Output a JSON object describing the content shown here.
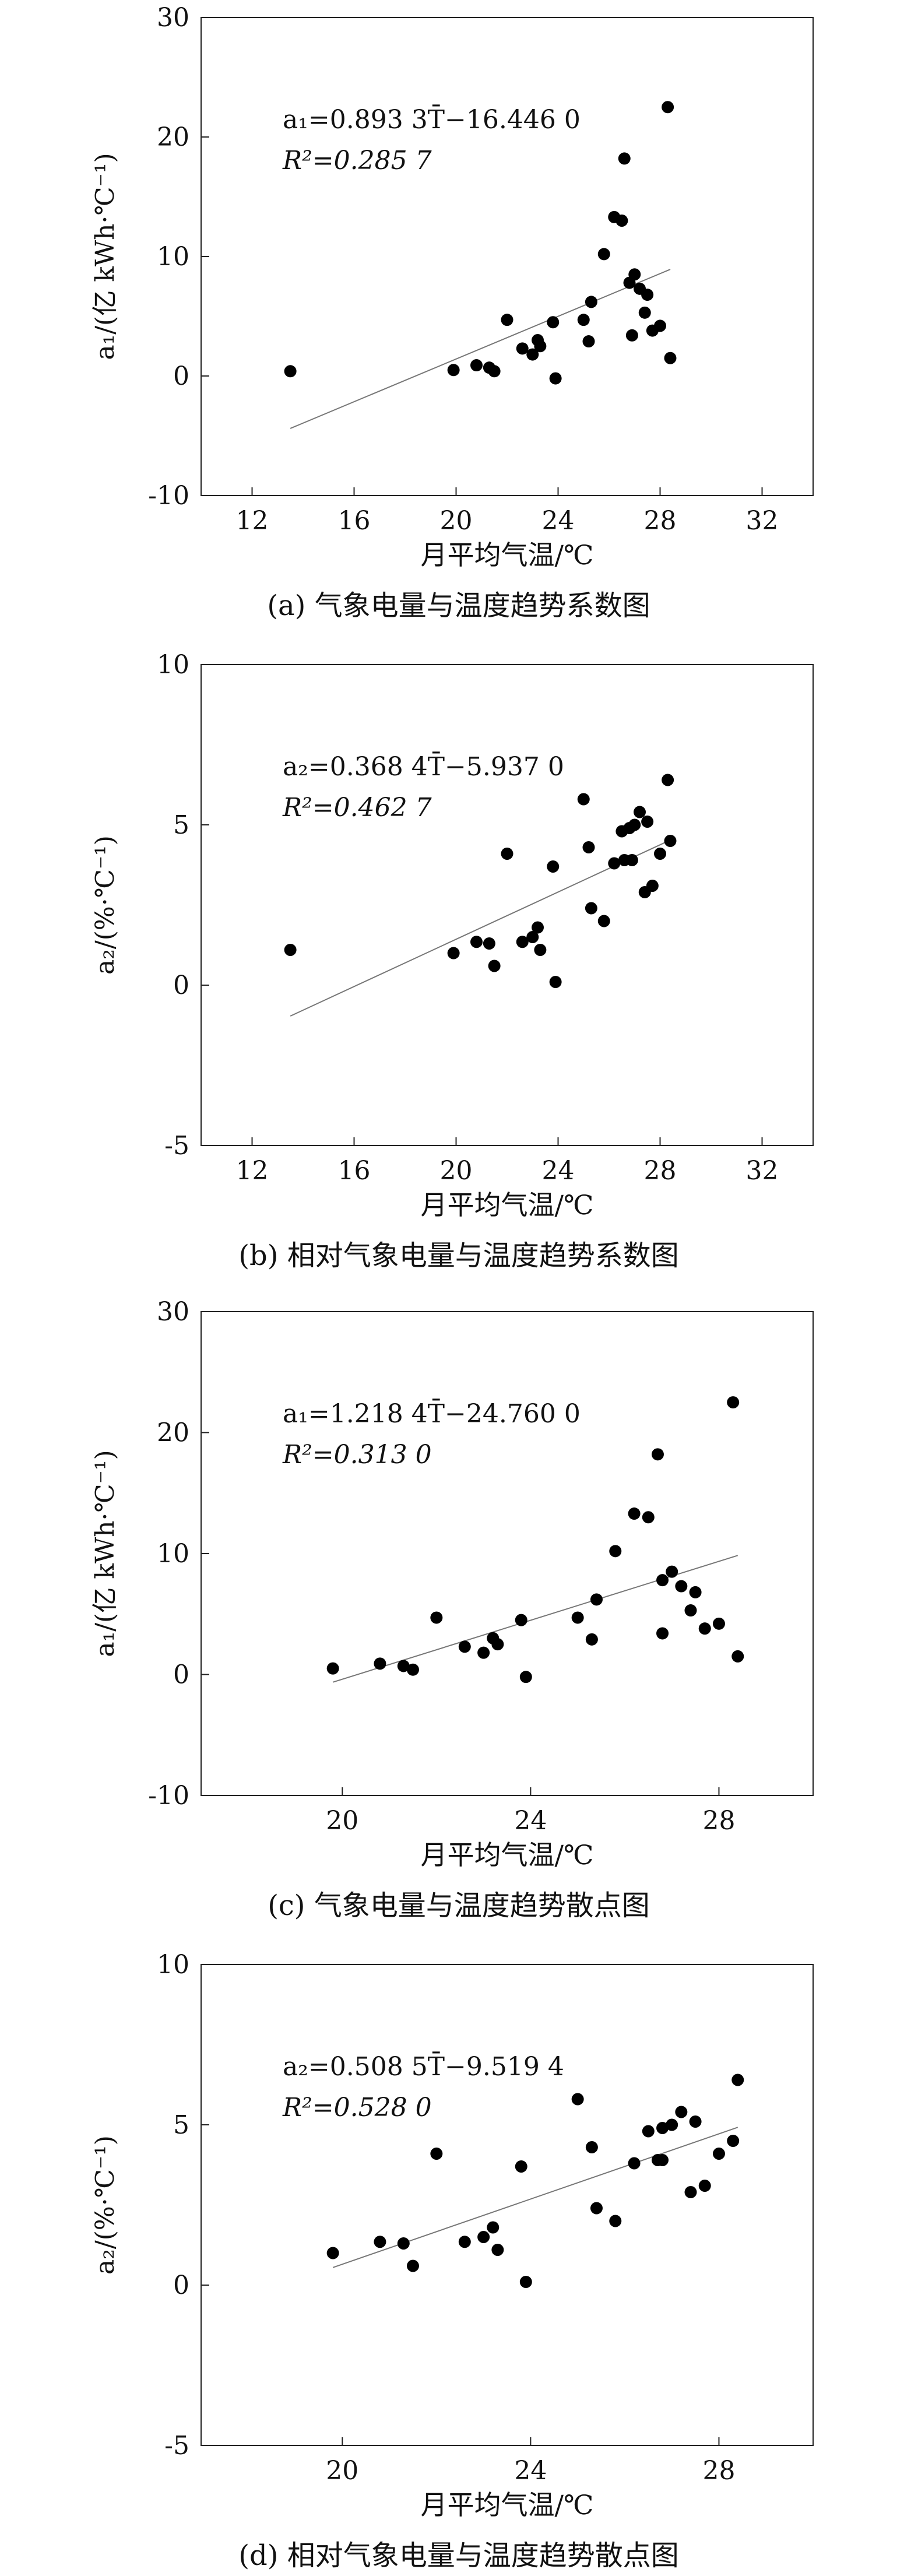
{
  "chart_data": [
    {
      "type": "scatter",
      "panel": "a",
      "caption": "(a) 气象电量与温度趋势系数图",
      "xlabel": "月平均气温/℃",
      "ylabel": "a₁/(亿 kWh·℃⁻¹)",
      "xlim": [
        10,
        34
      ],
      "ylim": [
        -10,
        30
      ],
      "xticks": [
        12,
        16,
        20,
        24,
        28,
        32
      ],
      "yticks": [
        -10,
        0,
        10,
        20,
        30
      ],
      "equation": "a₁=0.893 3T̄−16.446 0",
      "r2": "R²=0.285 7",
      "fit": {
        "slope": 0.8933,
        "intercept": -16.446,
        "x_range": [
          13.5,
          28.4
        ]
      },
      "points": [
        {
          "x": 13.5,
          "y": 0.4
        },
        {
          "x": 19.9,
          "y": 0.5
        },
        {
          "x": 20.8,
          "y": 0.9
        },
        {
          "x": 21.3,
          "y": 0.7
        },
        {
          "x": 21.5,
          "y": 0.4
        },
        {
          "x": 22.0,
          "y": 4.7
        },
        {
          "x": 22.6,
          "y": 2.3
        },
        {
          "x": 23.0,
          "y": 1.8
        },
        {
          "x": 23.2,
          "y": 3.0
        },
        {
          "x": 23.3,
          "y": 2.5
        },
        {
          "x": 23.8,
          "y": 4.5
        },
        {
          "x": 23.9,
          "y": -0.2
        },
        {
          "x": 25.0,
          "y": 4.7
        },
        {
          "x": 25.2,
          "y": 2.9
        },
        {
          "x": 25.3,
          "y": 6.2
        },
        {
          "x": 25.8,
          "y": 10.2
        },
        {
          "x": 26.2,
          "y": 13.3
        },
        {
          "x": 26.5,
          "y": 13.0
        },
        {
          "x": 26.6,
          "y": 18.2
        },
        {
          "x": 26.8,
          "y": 7.8
        },
        {
          "x": 26.9,
          "y": 3.4
        },
        {
          "x": 27.0,
          "y": 8.5
        },
        {
          "x": 27.2,
          "y": 7.3
        },
        {
          "x": 27.4,
          "y": 5.3
        },
        {
          "x": 27.5,
          "y": 6.8
        },
        {
          "x": 27.7,
          "y": 3.8
        },
        {
          "x": 28.0,
          "y": 4.2
        },
        {
          "x": 28.3,
          "y": 22.5
        },
        {
          "x": 28.4,
          "y": 1.5
        }
      ]
    },
    {
      "type": "scatter",
      "panel": "b",
      "caption": "(b) 相对气象电量与温度趋势系数图",
      "xlabel": "月平均气温/℃",
      "ylabel": "a₂/(%·℃⁻¹)",
      "xlim": [
        10,
        34
      ],
      "ylim": [
        -5,
        10
      ],
      "xticks": [
        12,
        16,
        20,
        24,
        28,
        32
      ],
      "yticks": [
        -5,
        0,
        5,
        10
      ],
      "equation": "a₂=0.368 4T̄−5.937 0",
      "r2": "R²=0.462 7",
      "fit": {
        "slope": 0.3684,
        "intercept": -5.937,
        "x_range": [
          13.5,
          28.4
        ]
      },
      "points": [
        {
          "x": 13.5,
          "y": 1.1
        },
        {
          "x": 19.9,
          "y": 1.0
        },
        {
          "x": 20.8,
          "y": 1.35
        },
        {
          "x": 21.3,
          "y": 1.3
        },
        {
          "x": 21.5,
          "y": 0.6
        },
        {
          "x": 22.0,
          "y": 4.1
        },
        {
          "x": 22.6,
          "y": 1.35
        },
        {
          "x": 23.0,
          "y": 1.5
        },
        {
          "x": 23.2,
          "y": 1.8
        },
        {
          "x": 23.3,
          "y": 1.1
        },
        {
          "x": 23.8,
          "y": 3.7
        },
        {
          "x": 23.9,
          "y": 0.1
        },
        {
          "x": 25.0,
          "y": 5.8
        },
        {
          "x": 25.2,
          "y": 4.3
        },
        {
          "x": 25.3,
          "y": 2.4
        },
        {
          "x": 25.8,
          "y": 2.0
        },
        {
          "x": 26.2,
          "y": 3.8
        },
        {
          "x": 26.5,
          "y": 4.8
        },
        {
          "x": 26.6,
          "y": 3.9
        },
        {
          "x": 26.8,
          "y": 4.9
        },
        {
          "x": 26.9,
          "y": 3.9
        },
        {
          "x": 27.0,
          "y": 5.0
        },
        {
          "x": 27.2,
          "y": 5.4
        },
        {
          "x": 27.4,
          "y": 2.9
        },
        {
          "x": 27.5,
          "y": 5.1
        },
        {
          "x": 27.7,
          "y": 3.1
        },
        {
          "x": 28.0,
          "y": 4.1
        },
        {
          "x": 28.3,
          "y": 6.4
        },
        {
          "x": 28.4,
          "y": 4.5
        }
      ]
    },
    {
      "type": "scatter",
      "panel": "c",
      "caption": "(c) 气象电量与温度趋势散点图",
      "xlabel": "月平均气温/℃",
      "ylabel": "a₁/(亿 kWh·℃⁻¹)",
      "xlim": [
        17,
        30
      ],
      "ylim": [
        -10,
        30
      ],
      "xticks": [
        20,
        24,
        28
      ],
      "yticks": [
        -10,
        0,
        10,
        20,
        30
      ],
      "equation": "a₁=1.218 4T̄−24.760 0",
      "r2": "R²=0.313 0",
      "fit": {
        "slope": 1.2184,
        "intercept": -24.76,
        "x_range": [
          19.8,
          28.4
        ]
      },
      "points": [
        {
          "x": 19.8,
          "y": 0.5
        },
        {
          "x": 20.8,
          "y": 0.9
        },
        {
          "x": 21.3,
          "y": 0.7
        },
        {
          "x": 21.5,
          "y": 0.4
        },
        {
          "x": 22.0,
          "y": 4.7
        },
        {
          "x": 22.6,
          "y": 2.3
        },
        {
          "x": 23.0,
          "y": 1.8
        },
        {
          "x": 23.2,
          "y": 3.0
        },
        {
          "x": 23.3,
          "y": 2.5
        },
        {
          "x": 23.8,
          "y": 4.5
        },
        {
          "x": 23.9,
          "y": -0.2
        },
        {
          "x": 25.0,
          "y": 4.7
        },
        {
          "x": 25.3,
          "y": 2.9
        },
        {
          "x": 25.4,
          "y": 6.2
        },
        {
          "x": 25.8,
          "y": 10.2
        },
        {
          "x": 26.2,
          "y": 13.3
        },
        {
          "x": 26.5,
          "y": 13.0
        },
        {
          "x": 26.7,
          "y": 18.2
        },
        {
          "x": 26.8,
          "y": 7.8
        },
        {
          "x": 26.8,
          "y": 3.4
        },
        {
          "x": 27.0,
          "y": 8.5
        },
        {
          "x": 27.2,
          "y": 7.3
        },
        {
          "x": 27.4,
          "y": 5.3
        },
        {
          "x": 27.5,
          "y": 6.8
        },
        {
          "x": 27.7,
          "y": 3.8
        },
        {
          "x": 28.0,
          "y": 4.2
        },
        {
          "x": 28.3,
          "y": 22.5
        },
        {
          "x": 28.4,
          "y": 1.5
        }
      ]
    },
    {
      "type": "scatter",
      "panel": "d",
      "caption": "(d) 相对气象电量与温度趋势散点图",
      "xlabel": "月平均气温/℃",
      "ylabel": "a₂/(%·℃⁻¹)",
      "xlim": [
        17,
        30
      ],
      "ylim": [
        -5,
        10
      ],
      "xticks": [
        20,
        24,
        28
      ],
      "yticks": [
        -5,
        0,
        5,
        10
      ],
      "equation": "a₂=0.508 5T̄−9.519 4",
      "r2": "R²=0.528 0",
      "fit": {
        "slope": 0.5085,
        "intercept": -9.5194,
        "x_range": [
          19.8,
          28.4
        ]
      },
      "points": [
        {
          "x": 19.8,
          "y": 1.0
        },
        {
          "x": 20.8,
          "y": 1.35
        },
        {
          "x": 21.3,
          "y": 1.3
        },
        {
          "x": 21.5,
          "y": 0.6
        },
        {
          "x": 22.0,
          "y": 4.1
        },
        {
          "x": 22.6,
          "y": 1.35
        },
        {
          "x": 23.0,
          "y": 1.5
        },
        {
          "x": 23.2,
          "y": 1.8
        },
        {
          "x": 23.3,
          "y": 1.1
        },
        {
          "x": 23.8,
          "y": 3.7
        },
        {
          "x": 23.9,
          "y": 0.1
        },
        {
          "x": 25.0,
          "y": 5.8
        },
        {
          "x": 25.3,
          "y": 4.3
        },
        {
          "x": 25.4,
          "y": 2.4
        },
        {
          "x": 25.8,
          "y": 2.0
        },
        {
          "x": 26.2,
          "y": 3.8
        },
        {
          "x": 26.5,
          "y": 4.8
        },
        {
          "x": 26.7,
          "y": 3.9
        },
        {
          "x": 26.8,
          "y": 4.9
        },
        {
          "x": 26.8,
          "y": 3.9
        },
        {
          "x": 27.0,
          "y": 5.0
        },
        {
          "x": 27.2,
          "y": 5.4
        },
        {
          "x": 27.4,
          "y": 2.9
        },
        {
          "x": 27.5,
          "y": 5.1
        },
        {
          "x": 27.7,
          "y": 3.1
        },
        {
          "x": 28.0,
          "y": 4.1
        },
        {
          "x": 28.3,
          "y": 4.5
        },
        {
          "x": 28.4,
          "y": 6.4
        }
      ]
    }
  ]
}
